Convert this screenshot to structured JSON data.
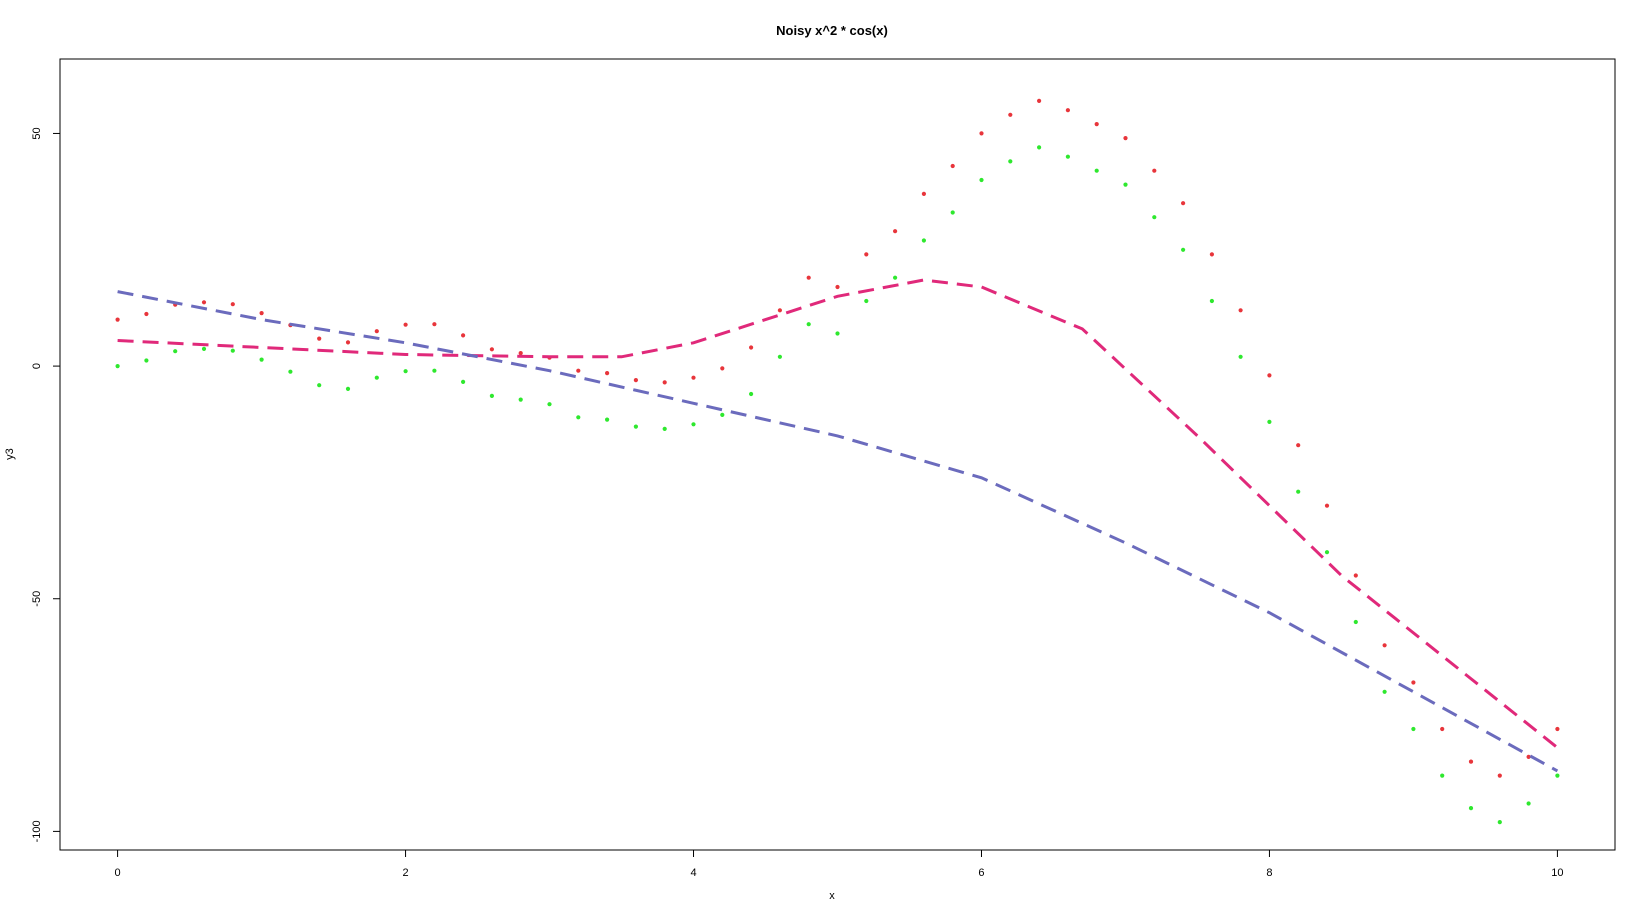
{
  "chart_data": {
    "type": "scatter",
    "title": "Noisy x^2 * cos(x)",
    "xlabel": "x",
    "ylabel": "y3",
    "xlim": [
      -0.4,
      10.4
    ],
    "ylim": [
      -104,
      66
    ],
    "xticks": [
      0,
      2,
      4,
      6,
      8,
      10
    ],
    "yticks": [
      -100,
      -50,
      0,
      50
    ],
    "xtick_labels": [
      "0",
      "2",
      "4",
      "6",
      "8",
      "10"
    ],
    "ytick_labels": [
      "-100",
      "-50",
      "0",
      "50"
    ],
    "grid": false,
    "legend": "none",
    "series": [
      {
        "kind": "points",
        "color": "#e8353b",
        "description": "noisy y = x^2*cos(x) + 10 + noise",
        "x": [
          0,
          0.2,
          0.4,
          0.6,
          0.8,
          1,
          1.2,
          1.4,
          1.6,
          1.8,
          2,
          2.2,
          2.4,
          2.6,
          2.8,
          3,
          3.2,
          3.4,
          3.6,
          3.8,
          4,
          4.2,
          4.4,
          4.6,
          4.8,
          5,
          5.2,
          5.4,
          5.6,
          5.8,
          6,
          6.2,
          6.4,
          6.6,
          6.8,
          7,
          7.2,
          7.4,
          7.6,
          7.8,
          8,
          8.2,
          8.4,
          8.6,
          8.8,
          9,
          9.2,
          9.4,
          9.6,
          9.8,
          10
        ],
        "y": [
          10,
          11.2,
          13.2,
          13.7,
          13.3,
          11.4,
          8.8,
          5.9,
          5.1,
          7.5,
          8.9,
          9.0,
          6.6,
          3.6,
          2.8,
          1.8,
          -1.0,
          -1.5,
          -3.0,
          -3.5,
          -2.5,
          -0.5,
          4.0,
          12.0,
          19.0,
          17.0,
          24.0,
          29.0,
          37.0,
          43.0,
          50.0,
          54.0,
          57.0,
          55.0,
          52.0,
          49.0,
          42.0,
          35.0,
          24.0,
          12.0,
          -2.0,
          -17.0,
          -30.0,
          -45.0,
          -60.0,
          -68.0,
          -78.0,
          -85.0,
          -88.0,
          -84.0,
          -78.0
        ]
      },
      {
        "kind": "points",
        "color": "#2ee82e",
        "description": "noisy y = x^2*cos(x) + noise",
        "x": [
          0,
          0.2,
          0.4,
          0.6,
          0.8,
          1,
          1.2,
          1.4,
          1.6,
          1.8,
          2,
          2.2,
          2.4,
          2.6,
          2.8,
          3,
          3.2,
          3.4,
          3.6,
          3.8,
          4,
          4.2,
          4.4,
          4.6,
          4.8,
          5,
          5.2,
          5.4,
          5.6,
          5.8,
          6,
          6.2,
          6.4,
          6.6,
          6.8,
          7,
          7.2,
          7.4,
          7.6,
          7.8,
          8,
          8.2,
          8.4,
          8.6,
          8.8,
          9,
          9.2,
          9.4,
          9.6,
          9.8,
          10
        ],
        "y": [
          0,
          1.2,
          3.2,
          3.7,
          3.3,
          1.4,
          -1.2,
          -4.1,
          -4.9,
          -2.5,
          -1.1,
          -1.0,
          -3.4,
          -6.4,
          -7.2,
          -8.2,
          -11.0,
          -11.5,
          -13.0,
          -13.5,
          -12.5,
          -10.5,
          -6.0,
          2.0,
          9.0,
          7.0,
          14.0,
          19.0,
          27.0,
          33.0,
          40.0,
          44.0,
          47.0,
          45.0,
          42.0,
          39.0,
          32.0,
          25.0,
          14.0,
          2.0,
          -12.0,
          -27.0,
          -40.0,
          -55.0,
          -70.0,
          -78.0,
          -88.0,
          -95.0,
          -98.0,
          -94.0,
          -88.0
        ]
      },
      {
        "kind": "dashed-line",
        "color": "#e0297a",
        "x": [
          0,
          1,
          2,
          3,
          3.5,
          4,
          4.5,
          5,
          5.6,
          6,
          6.7,
          7.5,
          8.5,
          10
        ],
        "y": [
          5.5,
          4,
          2.5,
          2,
          2,
          5,
          10,
          15,
          18.5,
          17,
          8,
          -15,
          -45,
          -82
        ]
      },
      {
        "kind": "dashed-line",
        "color": "#6b6bbd",
        "x": [
          0,
          1,
          2,
          3,
          4,
          5,
          6,
          7,
          8,
          9,
          10
        ],
        "y": [
          16,
          10,
          5,
          -1,
          -8,
          -15,
          -24,
          -38,
          -53,
          -70,
          -87
        ]
      }
    ]
  }
}
